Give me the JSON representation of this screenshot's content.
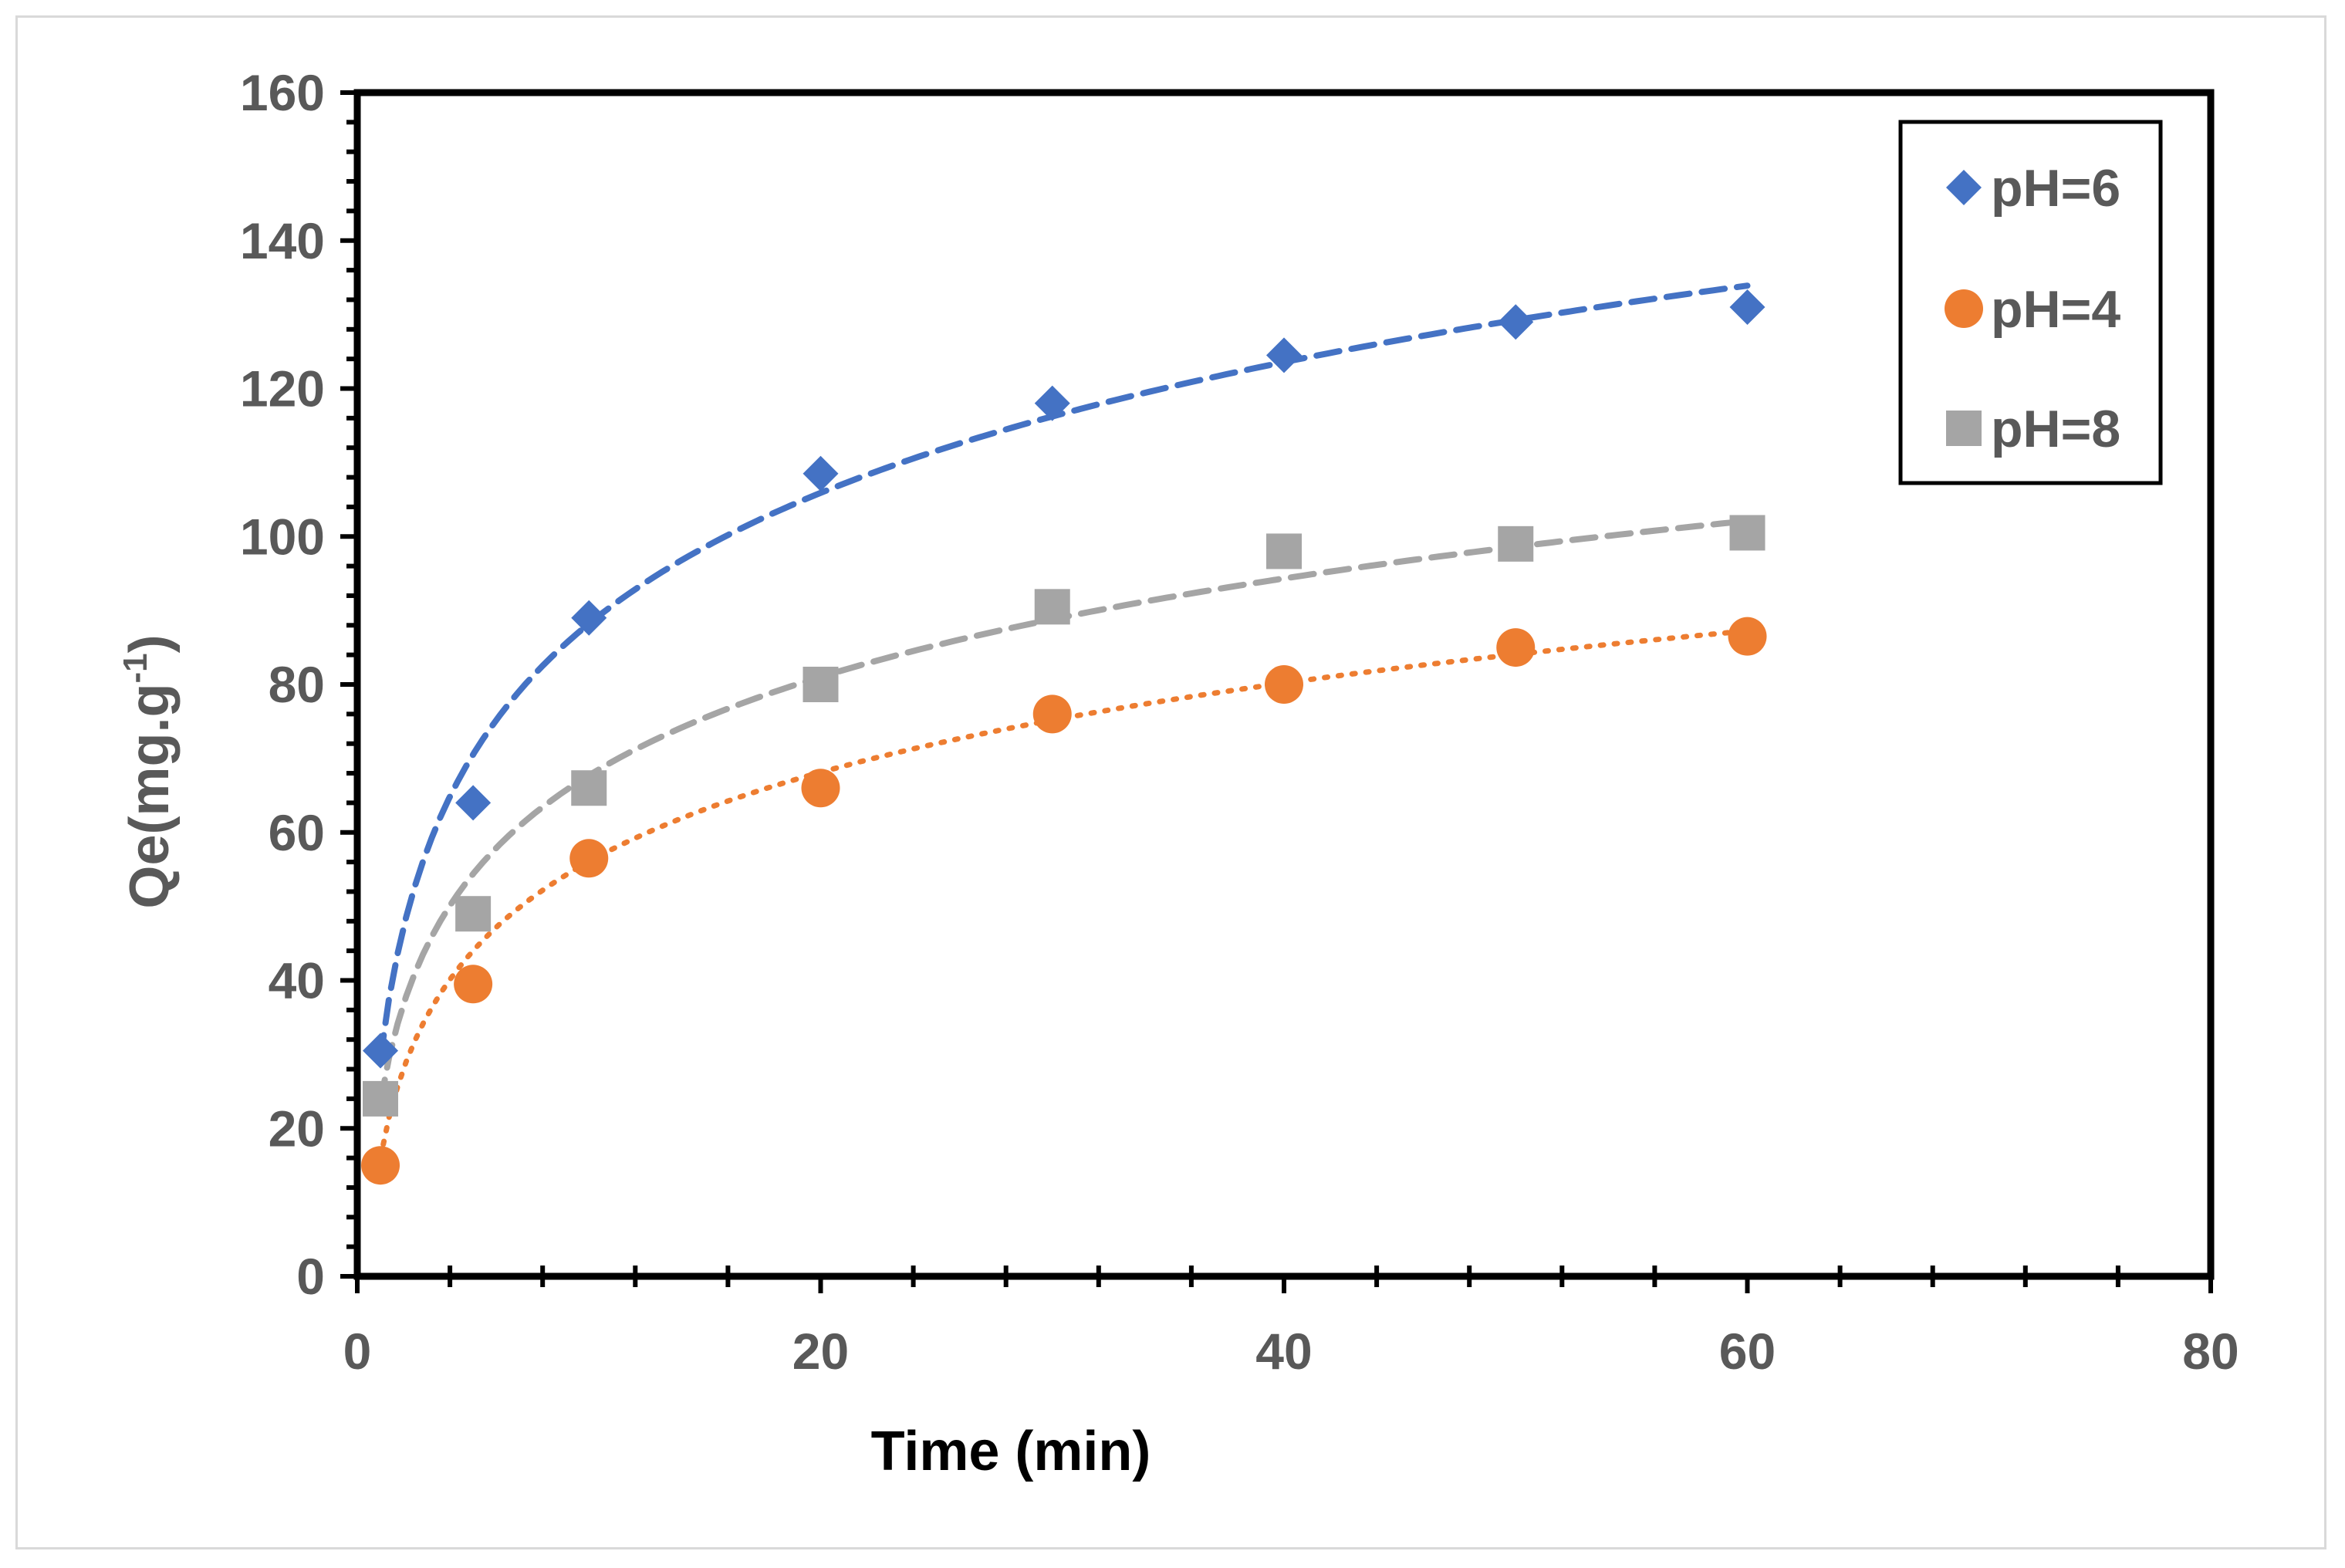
{
  "chart_data": {
    "type": "scatter",
    "title": "",
    "xlabel": "Time (min)",
    "ylabel_main": "Qe(mg.g",
    "ylabel_sup": "-1",
    "ylabel_close": ")",
    "xlim": [
      0,
      80
    ],
    "ylim": [
      0,
      160
    ],
    "xticks": [
      0,
      20,
      40,
      60,
      80
    ],
    "yticks": [
      0,
      20,
      40,
      60,
      80,
      100,
      120,
      140,
      160
    ],
    "x_minor_step": 4,
    "y_minor_step": 4,
    "grid": false,
    "legend_position": "top-right",
    "trendline": "logarithmic",
    "trend_range": [
      1,
      60
    ],
    "series": [
      {
        "name": "pH=6",
        "marker": "diamond",
        "color": "#4472c4",
        "line_style": "dashed",
        "x": [
          1,
          5,
          10,
          20,
          30,
          40,
          50,
          60
        ],
        "y": [
          30.5,
          64,
          89,
          108.5,
          118,
          124.5,
          129,
          131
        ],
        "trend": {
          "a": 29.5,
          "b": 25.5
        }
      },
      {
        "name": "pH=4",
        "marker": "circle",
        "color": "#ed7d31",
        "line_style": "dotted",
        "x": [
          1,
          5,
          10,
          20,
          30,
          40,
          50,
          60
        ],
        "y": [
          15,
          39.5,
          56.5,
          66,
          76,
          80,
          85,
          86.5
        ],
        "trend": {
          "a": 16,
          "b": 17.4
        }
      },
      {
        "name": "pH=8",
        "marker": "square",
        "color": "#a5a5a5",
        "line_style": "dashed",
        "x": [
          1,
          5,
          10,
          20,
          30,
          40,
          50,
          60
        ],
        "y": [
          24,
          49,
          66,
          80,
          90.5,
          98,
          99,
          100.5
        ],
        "trend": {
          "a": 23.5,
          "b": 19.2
        }
      }
    ]
  }
}
